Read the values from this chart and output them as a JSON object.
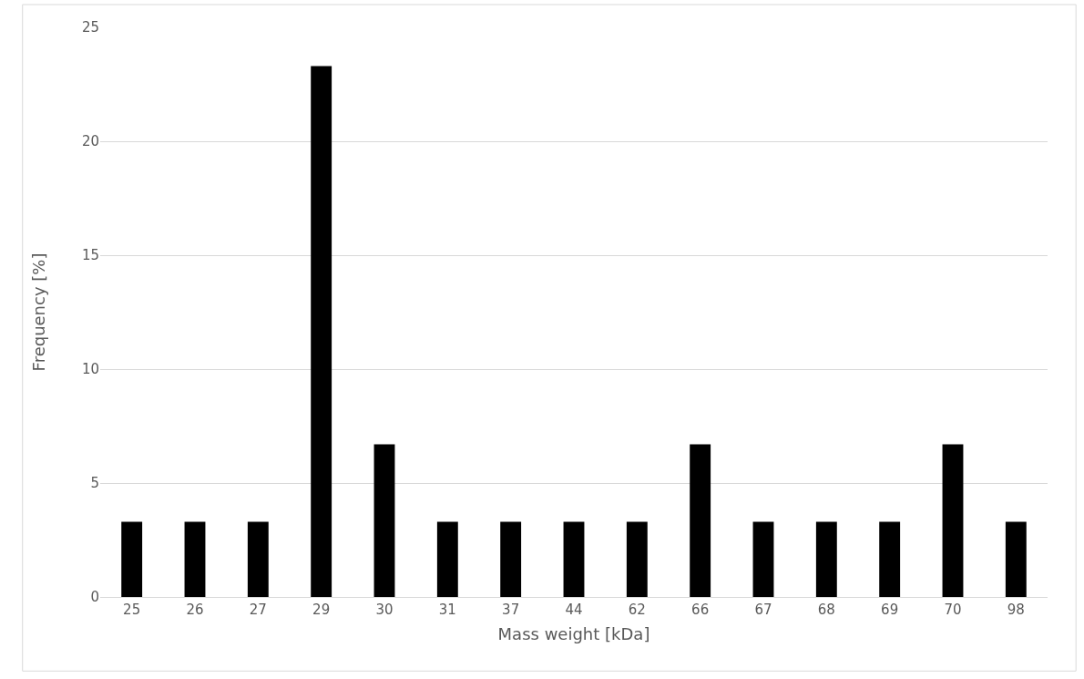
{
  "chart_data": {
    "type": "bar",
    "categories": [
      "25",
      "26",
      "27",
      "29",
      "30",
      "31",
      "37",
      "44",
      "62",
      "66",
      "67",
      "68",
      "69",
      "70",
      "98"
    ],
    "values": [
      3.3,
      3.3,
      3.3,
      23.3,
      6.7,
      3.3,
      3.3,
      3.3,
      3.3,
      6.7,
      3.3,
      3.3,
      3.3,
      6.7,
      3.3
    ],
    "color": "#000000",
    "xlabel": "Mass weight [kDa]",
    "ylabel": "Frequency [%]",
    "ylim": [
      0,
      25
    ],
    "yticks": [
      0,
      5,
      10,
      15,
      20,
      25
    ],
    "grid": "y",
    "legend": false
  }
}
